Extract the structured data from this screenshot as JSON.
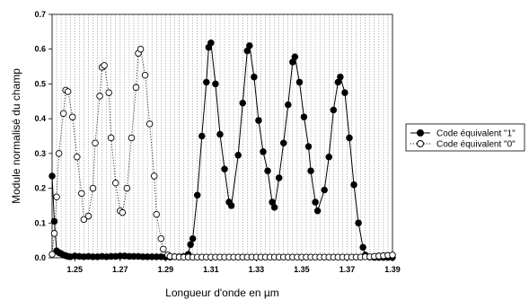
{
  "chart_data": {
    "type": "line",
    "title": "",
    "xlabel": "Longueur d'onde en µm",
    "ylabel": "Module normalisé du champ",
    "xlim": [
      1.24,
      1.39
    ],
    "ylim": [
      0,
      0.7
    ],
    "x_ticks": [
      "1.25",
      "1.27",
      "1.29",
      "1.31",
      "1.33",
      "1.35",
      "1.37",
      "1.39"
    ],
    "y_ticks": [
      "0.0",
      "0.1",
      "0.2",
      "0.3",
      "0.4",
      "0.5",
      "0.6",
      "0.7"
    ],
    "grid": "vertical",
    "legend_position": "right",
    "series": [
      {
        "name": "Code équivalent \"1\"",
        "marker": "filled-circle",
        "line_style": "solid",
        "color": "#000000",
        "points": [
          [
            1.24,
            0.235
          ],
          [
            1.241,
            0.105
          ],
          [
            1.242,
            0.02
          ],
          [
            1.243,
            0.015
          ],
          [
            1.244,
            0.012
          ],
          [
            1.245,
            0.008
          ],
          [
            1.246,
            0.006
          ],
          [
            1.247,
            0.004
          ],
          [
            1.248,
            0.003
          ],
          [
            1.25,
            0.005
          ],
          [
            1.252,
            0.004
          ],
          [
            1.254,
            0.003
          ],
          [
            1.256,
            0.004
          ],
          [
            1.258,
            0.003
          ],
          [
            1.26,
            0.003
          ],
          [
            1.262,
            0.004
          ],
          [
            1.264,
            0.003
          ],
          [
            1.266,
            0.004
          ],
          [
            1.268,
            0.004
          ],
          [
            1.27,
            0.005
          ],
          [
            1.272,
            0.005
          ],
          [
            1.274,
            0.004
          ],
          [
            1.276,
            0.004
          ],
          [
            1.278,
            0.004
          ],
          [
            1.28,
            0.003
          ],
          [
            1.282,
            0.003
          ],
          [
            1.284,
            0.003
          ],
          [
            1.286,
            0.003
          ],
          [
            1.288,
            0.003
          ],
          [
            1.29,
            0.002
          ],
          [
            1.292,
            0.002
          ],
          [
            1.294,
            0.003
          ],
          [
            1.296,
            0.003
          ],
          [
            1.298,
            0.004
          ],
          [
            1.3,
            0.01
          ],
          [
            1.301,
            0.038
          ],
          [
            1.302,
            0.055
          ],
          [
            1.304,
            0.18
          ],
          [
            1.306,
            0.35
          ],
          [
            1.308,
            0.505
          ],
          [
            1.309,
            0.605
          ],
          [
            1.31,
            0.618
          ],
          [
            1.312,
            0.5
          ],
          [
            1.314,
            0.355
          ],
          [
            1.316,
            0.255
          ],
          [
            1.318,
            0.16
          ],
          [
            1.319,
            0.15
          ],
          [
            1.322,
            0.295
          ],
          [
            1.324,
            0.445
          ],
          [
            1.326,
            0.595
          ],
          [
            1.327,
            0.61
          ],
          [
            1.329,
            0.52
          ],
          [
            1.331,
            0.395
          ],
          [
            1.333,
            0.305
          ],
          [
            1.335,
            0.25
          ],
          [
            1.337,
            0.16
          ],
          [
            1.338,
            0.145
          ],
          [
            1.34,
            0.23
          ],
          [
            1.342,
            0.33
          ],
          [
            1.344,
            0.44
          ],
          [
            1.346,
            0.563
          ],
          [
            1.347,
            0.578
          ],
          [
            1.349,
            0.505
          ],
          [
            1.351,
            0.405
          ],
          [
            1.353,
            0.32
          ],
          [
            1.354,
            0.25
          ],
          [
            1.356,
            0.16
          ],
          [
            1.357,
            0.135
          ],
          [
            1.36,
            0.195
          ],
          [
            1.362,
            0.29
          ],
          [
            1.364,
            0.425
          ],
          [
            1.366,
            0.505
          ],
          [
            1.367,
            0.52
          ],
          [
            1.369,
            0.475
          ],
          [
            1.371,
            0.345
          ],
          [
            1.373,
            0.21
          ],
          [
            1.375,
            0.1
          ],
          [
            1.377,
            0.03
          ],
          [
            1.378,
            0.008
          ],
          [
            1.38,
            0.002
          ],
          [
            1.382,
            0.001
          ],
          [
            1.384,
            0.001
          ],
          [
            1.386,
            0.001
          ],
          [
            1.388,
            0.001
          ],
          [
            1.39,
            0.001
          ]
        ]
      },
      {
        "name": "Code équivalent \"0\"",
        "marker": "open-circle",
        "line_style": "dotted",
        "color": "#000000",
        "points": [
          [
            1.24,
            0.01
          ],
          [
            1.241,
            0.07
          ],
          [
            1.242,
            0.175
          ],
          [
            1.243,
            0.3
          ],
          [
            1.245,
            0.415
          ],
          [
            1.246,
            0.482
          ],
          [
            1.247,
            0.478
          ],
          [
            1.249,
            0.405
          ],
          [
            1.251,
            0.29
          ],
          [
            1.253,
            0.185
          ],
          [
            1.254,
            0.11
          ],
          [
            1.256,
            0.12
          ],
          [
            1.258,
            0.2
          ],
          [
            1.259,
            0.33
          ],
          [
            1.261,
            0.465
          ],
          [
            1.262,
            0.548
          ],
          [
            1.263,
            0.553
          ],
          [
            1.265,
            0.475
          ],
          [
            1.266,
            0.345
          ],
          [
            1.268,
            0.215
          ],
          [
            1.27,
            0.135
          ],
          [
            1.271,
            0.13
          ],
          [
            1.273,
            0.2
          ],
          [
            1.275,
            0.345
          ],
          [
            1.277,
            0.49
          ],
          [
            1.278,
            0.588
          ],
          [
            1.279,
            0.6
          ],
          [
            1.281,
            0.525
          ],
          [
            1.283,
            0.385
          ],
          [
            1.285,
            0.235
          ],
          [
            1.286,
            0.125
          ],
          [
            1.288,
            0.055
          ],
          [
            1.289,
            0.025
          ],
          [
            1.291,
            0.008
          ],
          [
            1.292,
            0.004
          ],
          [
            1.294,
            0.003
          ],
          [
            1.296,
            0.002
          ],
          [
            1.298,
            0.002
          ],
          [
            1.3,
            0.002
          ],
          [
            1.302,
            0.002
          ],
          [
            1.304,
            0.002
          ],
          [
            1.306,
            0.002
          ],
          [
            1.308,
            0.002
          ],
          [
            1.31,
            0.002
          ],
          [
            1.312,
            0.002
          ],
          [
            1.314,
            0.002
          ],
          [
            1.316,
            0.002
          ],
          [
            1.318,
            0.002
          ],
          [
            1.32,
            0.002
          ],
          [
            1.322,
            0.002
          ],
          [
            1.324,
            0.002
          ],
          [
            1.326,
            0.002
          ],
          [
            1.328,
            0.002
          ],
          [
            1.33,
            0.002
          ],
          [
            1.332,
            0.002
          ],
          [
            1.334,
            0.002
          ],
          [
            1.336,
            0.002
          ],
          [
            1.338,
            0.002
          ],
          [
            1.34,
            0.002
          ],
          [
            1.342,
            0.002
          ],
          [
            1.344,
            0.002
          ],
          [
            1.346,
            0.002
          ],
          [
            1.348,
            0.002
          ],
          [
            1.35,
            0.002
          ],
          [
            1.352,
            0.002
          ],
          [
            1.354,
            0.002
          ],
          [
            1.356,
            0.002
          ],
          [
            1.358,
            0.002
          ],
          [
            1.36,
            0.002
          ],
          [
            1.362,
            0.002
          ],
          [
            1.364,
            0.002
          ],
          [
            1.366,
            0.002
          ],
          [
            1.368,
            0.002
          ],
          [
            1.37,
            0.002
          ],
          [
            1.372,
            0.002
          ],
          [
            1.374,
            0.002
          ],
          [
            1.376,
            0.002
          ],
          [
            1.378,
            0.003
          ],
          [
            1.38,
            0.003
          ],
          [
            1.382,
            0.004
          ],
          [
            1.384,
            0.005
          ],
          [
            1.386,
            0.006
          ],
          [
            1.388,
            0.007
          ],
          [
            1.39,
            0.008
          ]
        ]
      }
    ]
  }
}
